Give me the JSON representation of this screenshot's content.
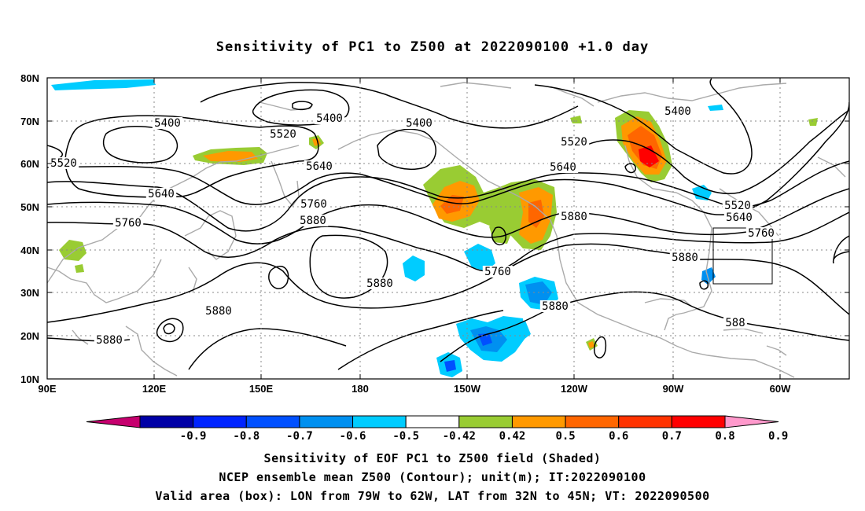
{
  "title": "Sensitivity of PC1 to Z500 at 2022090100 +1.0 day",
  "lat_labels": [
    "80N",
    "70N",
    "60N",
    "50N",
    "40N",
    "30N",
    "20N",
    "10N"
  ],
  "lon_labels": [
    "90E",
    "120E",
    "150E",
    "180",
    "150W",
    "120W",
    "90W",
    "60W"
  ],
  "contour_labels": [
    "5400",
    "5400",
    "5400",
    "5400",
    "5520",
    "5520",
    "5520",
    "5520",
    "5640",
    "5640",
    "5640",
    "5640",
    "5760",
    "5760",
    "5760",
    "5760",
    "5880",
    "5880",
    "5880",
    "5880",
    "5880",
    "5880",
    "5880",
    "588"
  ],
  "colorbar": {
    "ticks": [
      "-0.9",
      "-0.8",
      "-0.7",
      "-0.6",
      "-0.5",
      "-0.42",
      "0.42",
      "0.5",
      "0.6",
      "0.7",
      "0.8",
      "0.9"
    ],
    "colors": [
      "#c6006e",
      "#0000a6",
      "#0024ff",
      "#0050ff",
      "#0090f0",
      "#00ccff",
      "#ffffff",
      "#99cc33",
      "#ff9900",
      "#ff6600",
      "#ff3300",
      "#ff0000",
      "#ff99cc"
    ]
  },
  "caption": {
    "line1": "Sensitivity of EOF PC1 to Z500 field (Shaded)",
    "line2": "NCEP ensemble mean Z500 (Contour); unit(m); IT:2022090100",
    "line3": "Valid area (box): LON from 79W to 62W, LAT from 32N to 45N; VT: 2022090500"
  }
}
